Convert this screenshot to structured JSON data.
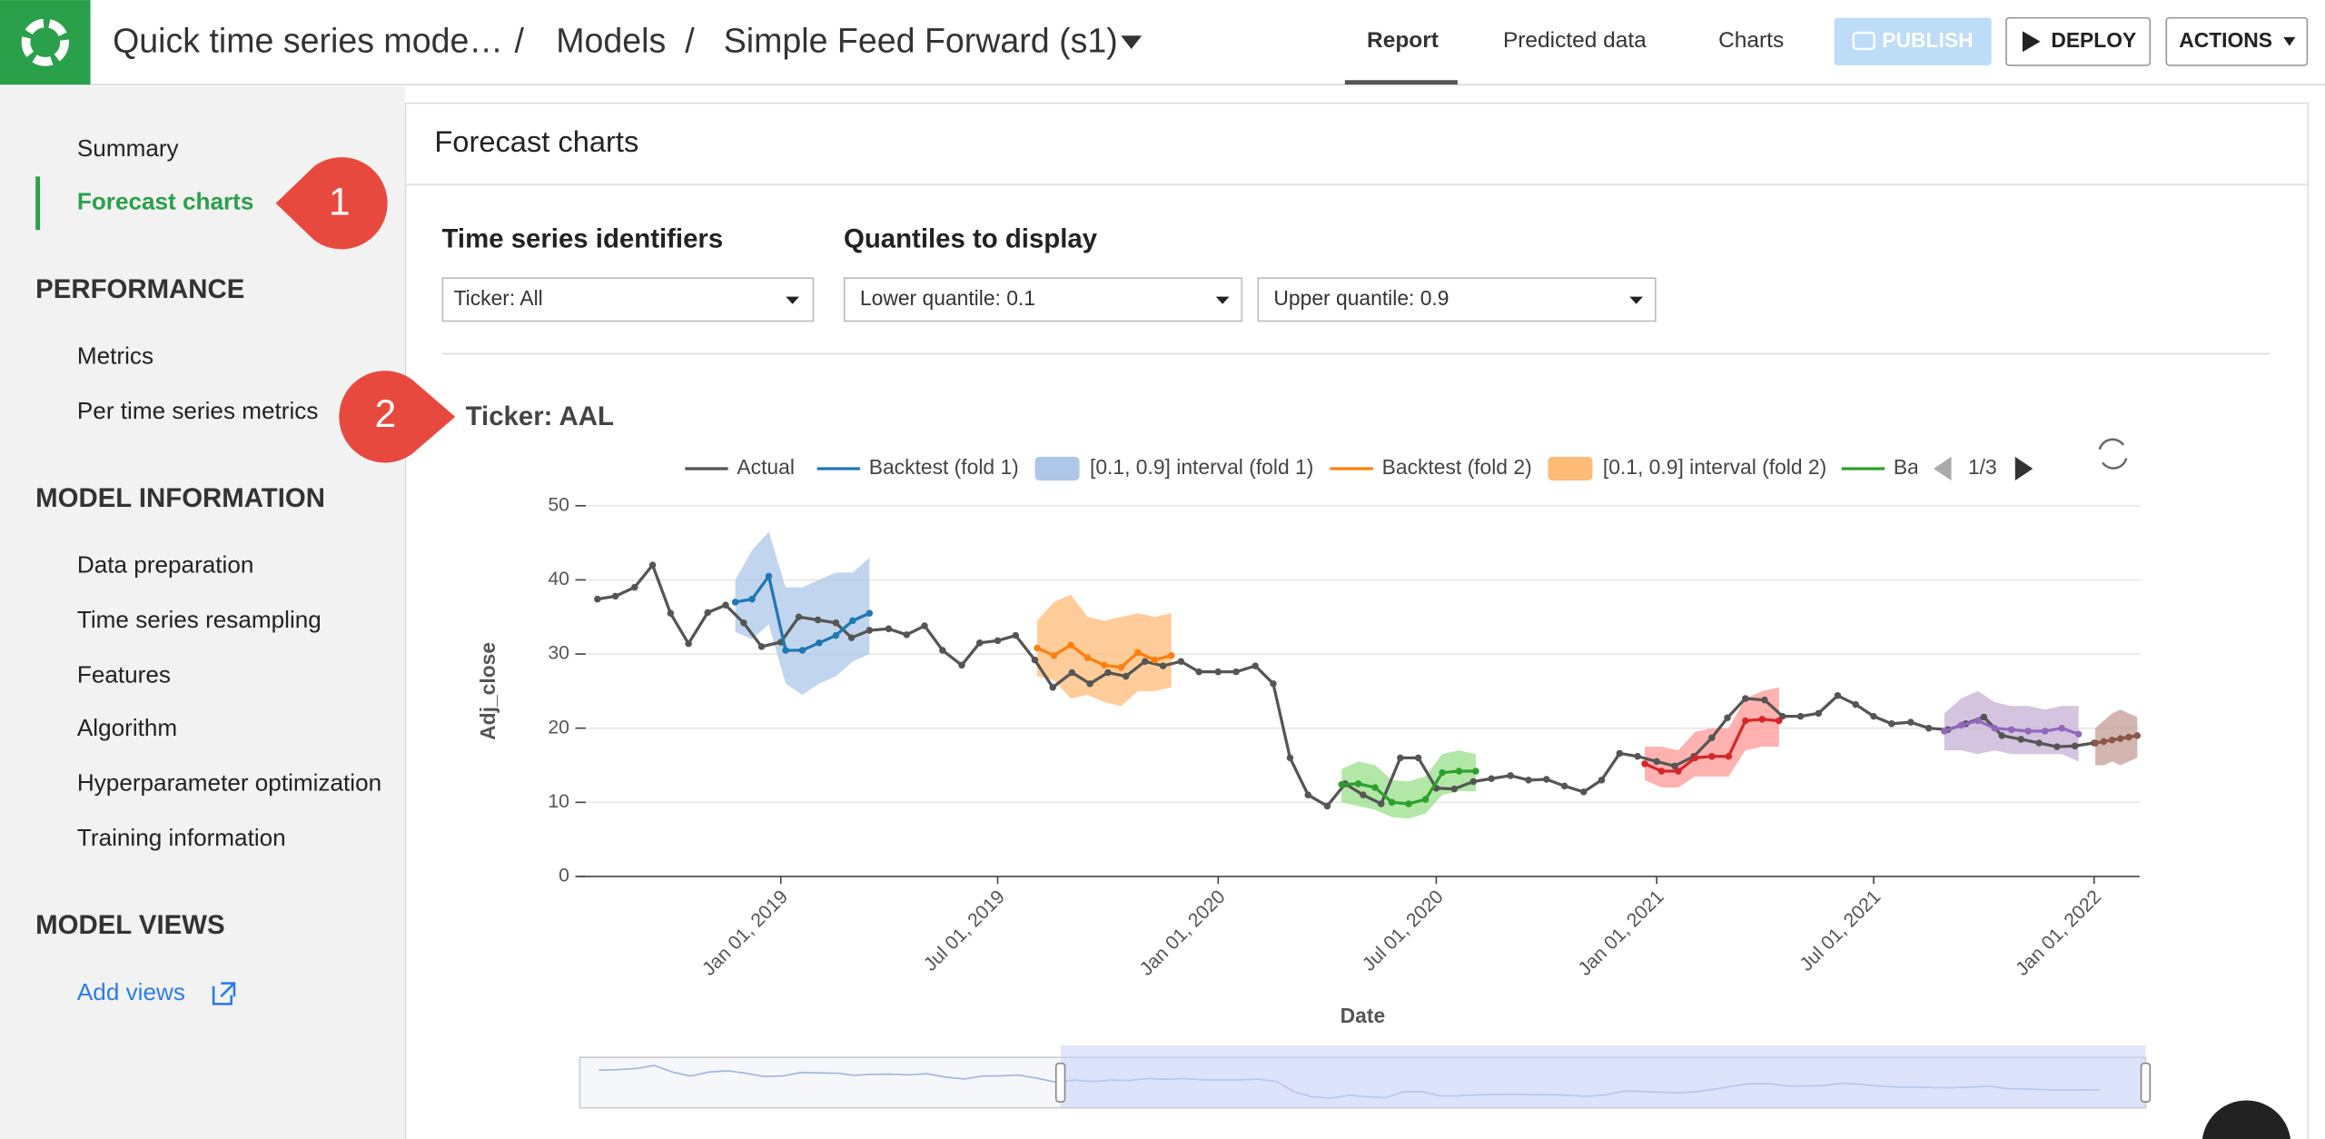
{
  "header": {
    "project": "Quick time series mode…",
    "separator": "/",
    "section": "Models",
    "model": "Simple Feed Forward (s1)"
  },
  "tabs": [
    "Report",
    "Predicted data",
    "Charts"
  ],
  "buttons": [
    "PUBLISH",
    "DEPLOY",
    "ACTIONS"
  ],
  "sidebar": {
    "top": [
      "Summary",
      "Forecast charts"
    ],
    "sections": [
      {
        "title": "PERFORMANCE",
        "items": [
          "Metrics",
          "Per time series metrics"
        ]
      },
      {
        "title": "MODEL INFORMATION",
        "items": [
          "Data preparation",
          "Time series resampling",
          "Features",
          "Algorithm",
          "Hyperparameter optimization",
          "Training information"
        ]
      },
      {
        "title": "MODEL VIEWS",
        "items": [
          "Add views"
        ]
      }
    ]
  },
  "callouts": [
    "1",
    "2"
  ],
  "panel": {
    "title": "Forecast charts",
    "identifiers_label": "Time series identifiers",
    "quantiles_label": "Quantiles to display",
    "dropdowns": [
      "Ticker: All",
      "Lower quantile: 0.1",
      "Upper quantile: 0.9"
    ]
  },
  "chart_data": {
    "type": "line",
    "title": "Ticker: AAL",
    "xlabel": "Date",
    "ylabel": "Adj_close",
    "legend_page": "1/3",
    "grid": true,
    "xlim": [
      "2018-07-16",
      "2022-02-08"
    ],
    "xticks": [
      {
        "value": "2019-01-01",
        "label": "Jan 01, 2019"
      },
      {
        "value": "2019-07-01",
        "label": "Jul 01, 2019"
      },
      {
        "value": "2020-01-01",
        "label": "Jan 01, 2020"
      },
      {
        "value": "2020-07-01",
        "label": "Jul 01, 2020"
      },
      {
        "value": "2021-01-01",
        "label": "Jan 01, 2021"
      },
      {
        "value": "2021-07-01",
        "label": "Jul 01, 2021"
      },
      {
        "value": "2022-01-01",
        "label": "Jan 01, 2022"
      }
    ],
    "ylim": [
      0,
      50
    ],
    "yticks": [
      0,
      10,
      20,
      30,
      40,
      50
    ],
    "rangeslider": [
      "2019-08-20",
      "2022-02-08"
    ],
    "series": [
      {
        "name": "Actual",
        "color": "#555555",
        "x": [
          "2018-08-01",
          "2018-08-16",
          "2018-09-01",
          "2018-09-16",
          "2018-10-01",
          "2018-10-16",
          "2018-11-01",
          "2018-11-16",
          "2018-12-01",
          "2018-12-16",
          "2019-01-01",
          "2019-01-16",
          "2019-02-01",
          "2019-02-16",
          "2019-03-01",
          "2019-03-16",
          "2019-04-01",
          "2019-04-16",
          "2019-05-01",
          "2019-05-16",
          "2019-06-01",
          "2019-06-16",
          "2019-07-01",
          "2019-07-16",
          "2019-08-01",
          "2019-08-16",
          "2019-09-01",
          "2019-09-16",
          "2019-10-01",
          "2019-10-16",
          "2019-11-01",
          "2019-11-16",
          "2019-12-01",
          "2019-12-16",
          "2020-01-01",
          "2020-01-16",
          "2020-02-01",
          "2020-02-16",
          "2020-03-01",
          "2020-03-16",
          "2020-04-01",
          "2020-04-16",
          "2020-05-01",
          "2020-05-16",
          "2020-06-01",
          "2020-06-16",
          "2020-07-01",
          "2020-07-16",
          "2020-08-01",
          "2020-08-16",
          "2020-09-01",
          "2020-09-16",
          "2020-10-01",
          "2020-10-16",
          "2020-11-01",
          "2020-11-16",
          "2020-12-01",
          "2020-12-16",
          "2021-01-01",
          "2021-01-16",
          "2021-02-01",
          "2021-02-16",
          "2021-03-01",
          "2021-03-16",
          "2021-04-01",
          "2021-04-16",
          "2021-05-01",
          "2021-05-16",
          "2021-06-01",
          "2021-06-16",
          "2021-07-01",
          "2021-07-16",
          "2021-08-01",
          "2021-08-16",
          "2021-09-01",
          "2021-09-16",
          "2021-10-01",
          "2021-10-16",
          "2021-11-01",
          "2021-11-16",
          "2021-12-01",
          "2021-12-16",
          "2022-01-01"
        ],
        "values": [
          37.4,
          37.8,
          39,
          42,
          35.5,
          31.4,
          35.6,
          36.6,
          34.2,
          31,
          31.6,
          35,
          34.6,
          34.2,
          32.2,
          33.2,
          33.4,
          32.6,
          33.8,
          30.5,
          28.5,
          31.5,
          31.8,
          32.5,
          29.2,
          25.5,
          27.5,
          26,
          27.5,
          27,
          29,
          28.4,
          29,
          27.6,
          27.6,
          27.6,
          28.4,
          26,
          16,
          11,
          9.5,
          12.5,
          11,
          9.8,
          16,
          16,
          11.9,
          11.8,
          12.8,
          13.2,
          13.6,
          13,
          13.1,
          12.2,
          11.4,
          13,
          16.6,
          16.2,
          15.5,
          14.9,
          16.2,
          18.7,
          21.4,
          24,
          23.8,
          21.6,
          21.6,
          22,
          24.4,
          23.2,
          21.6,
          20.6,
          20.8,
          20,
          19.8,
          20.6,
          21.5,
          19,
          18.5,
          18,
          17.5,
          17.6,
          18
        ]
      },
      {
        "name": "Backtest (fold 1)",
        "color": "#1f77b4",
        "x": [
          "2018-11-24",
          "2018-12-08",
          "2018-12-22",
          "2019-01-05",
          "2019-01-19",
          "2019-02-02",
          "2019-02-16",
          "2019-03-02",
          "2019-03-16"
        ],
        "values": [
          37,
          37.4,
          40.5,
          30.5,
          30.5,
          31.5,
          32.5,
          34.5,
          35.5
        ]
      },
      {
        "name": "Backtest (fold 2)",
        "color": "#ff7f0e",
        "x": [
          "2019-08-03",
          "2019-08-17",
          "2019-08-31",
          "2019-09-14",
          "2019-09-28",
          "2019-10-12",
          "2019-10-26",
          "2019-11-09",
          "2019-11-23"
        ],
        "values": [
          30.8,
          29.8,
          31.2,
          29.5,
          28.5,
          28.2,
          30.2,
          29.2,
          29.8
        ]
      },
      {
        "name": "Ba",
        "color": "#2ca02c",
        "x": [
          "2020-04-13",
          "2020-04-27",
          "2020-05-11",
          "2020-05-25",
          "2020-06-08",
          "2020-06-22",
          "2020-07-06",
          "2020-07-20",
          "2020-08-03"
        ],
        "values": [
          12.4,
          12.5,
          12,
          10,
          9.8,
          10.4,
          14,
          14.2,
          14.2
        ]
      },
      {
        "color": "#d62728",
        "x": [
          "2020-12-22",
          "2021-01-05",
          "2021-01-19",
          "2021-02-02",
          "2021-02-16",
          "2021-03-02",
          "2021-03-16",
          "2021-03-30",
          "2021-04-13"
        ],
        "values": [
          15.2,
          14.2,
          14.2,
          16,
          16.2,
          16.2,
          21,
          21.2,
          21
        ]
      },
      {
        "color": "#9467bd",
        "x": [
          "2021-08-29",
          "2021-09-12",
          "2021-09-26",
          "2021-10-10",
          "2021-10-24",
          "2021-11-07",
          "2021-11-21",
          "2021-12-05",
          "2021-12-19"
        ],
        "values": [
          19.6,
          20.4,
          21,
          20,
          19.8,
          19.6,
          19.6,
          20,
          19.2
        ]
      },
      {
        "color": "#8c564b",
        "x": [
          "2022-01-02",
          "2022-01-09",
          "2022-01-16",
          "2022-01-23",
          "2022-01-30",
          "2022-02-06"
        ],
        "values": [
          18,
          18.2,
          18.4,
          18.6,
          18.8,
          19
        ]
      }
    ],
    "bands": [
      {
        "name": "[0.1, 0.9] interval (fold 1)",
        "color": "#aec7e8",
        "x": [
          "2018-11-24",
          "2018-12-08",
          "2018-12-22",
          "2019-01-05",
          "2019-01-19",
          "2019-02-02",
          "2019-02-16",
          "2019-03-02",
          "2019-03-16"
        ],
        "lower": [
          33,
          32,
          34,
          26,
          24.5,
          26,
          27,
          29,
          30
        ],
        "upper": [
          40,
          44,
          46.5,
          39,
          39,
          40,
          41,
          41,
          43
        ]
      },
      {
        "name": "[0.1, 0.9] interval (fold 2)",
        "color": "#ffbb78",
        "x": [
          "2019-08-03",
          "2019-08-17",
          "2019-08-31",
          "2019-09-14",
          "2019-09-28",
          "2019-10-12",
          "2019-10-26",
          "2019-11-09",
          "2019-11-23"
        ],
        "lower": [
          27,
          26.5,
          24,
          24.5,
          23.5,
          23,
          25,
          25,
          25.5
        ],
        "upper": [
          34.5,
          37,
          38,
          35,
          34.5,
          35,
          35.5,
          35,
          35.5
        ]
      },
      {
        "color": "#98df8a",
        "x": [
          "2020-04-13",
          "2020-04-27",
          "2020-05-11",
          "2020-05-25",
          "2020-06-08",
          "2020-06-22",
          "2020-07-06",
          "2020-07-20",
          "2020-08-03"
        ],
        "lower": [
          10,
          9.5,
          9,
          8,
          7.8,
          8.5,
          11,
          11.5,
          11.5
        ],
        "upper": [
          14.5,
          15.5,
          15,
          13,
          12.8,
          13.5,
          16.5,
          17,
          16.5
        ]
      },
      {
        "color": "#ff9896",
        "x": [
          "2020-12-22",
          "2021-01-05",
          "2021-01-19",
          "2021-02-02",
          "2021-02-16",
          "2021-03-02",
          "2021-03-16",
          "2021-03-30",
          "2021-04-13"
        ],
        "lower": [
          13,
          12,
          12,
          13.5,
          13.5,
          13.5,
          17,
          17.5,
          17.5
        ],
        "upper": [
          17.5,
          17.5,
          17,
          19.5,
          20,
          20,
          24,
          25,
          25.5
        ]
      },
      {
        "color": "#c5b0d5",
        "x": [
          "2021-08-29",
          "2021-09-12",
          "2021-09-26",
          "2021-10-10",
          "2021-10-24",
          "2021-11-07",
          "2021-11-21",
          "2021-12-05",
          "2021-12-19"
        ],
        "lower": [
          17,
          17,
          16.5,
          17,
          16.5,
          16.5,
          16.5,
          16.5,
          15.5
        ],
        "upper": [
          22,
          24,
          25,
          23.5,
          23,
          23,
          22.5,
          23,
          23
        ]
      },
      {
        "color": "#c49c94",
        "x": [
          "2022-01-02",
          "2022-01-09",
          "2022-01-16",
          "2022-01-23",
          "2022-01-30",
          "2022-02-06"
        ],
        "lower": [
          15,
          15,
          15.5,
          15,
          15.5,
          16
        ],
        "upper": [
          20,
          21,
          22,
          22.5,
          22,
          21.5
        ]
      }
    ]
  }
}
